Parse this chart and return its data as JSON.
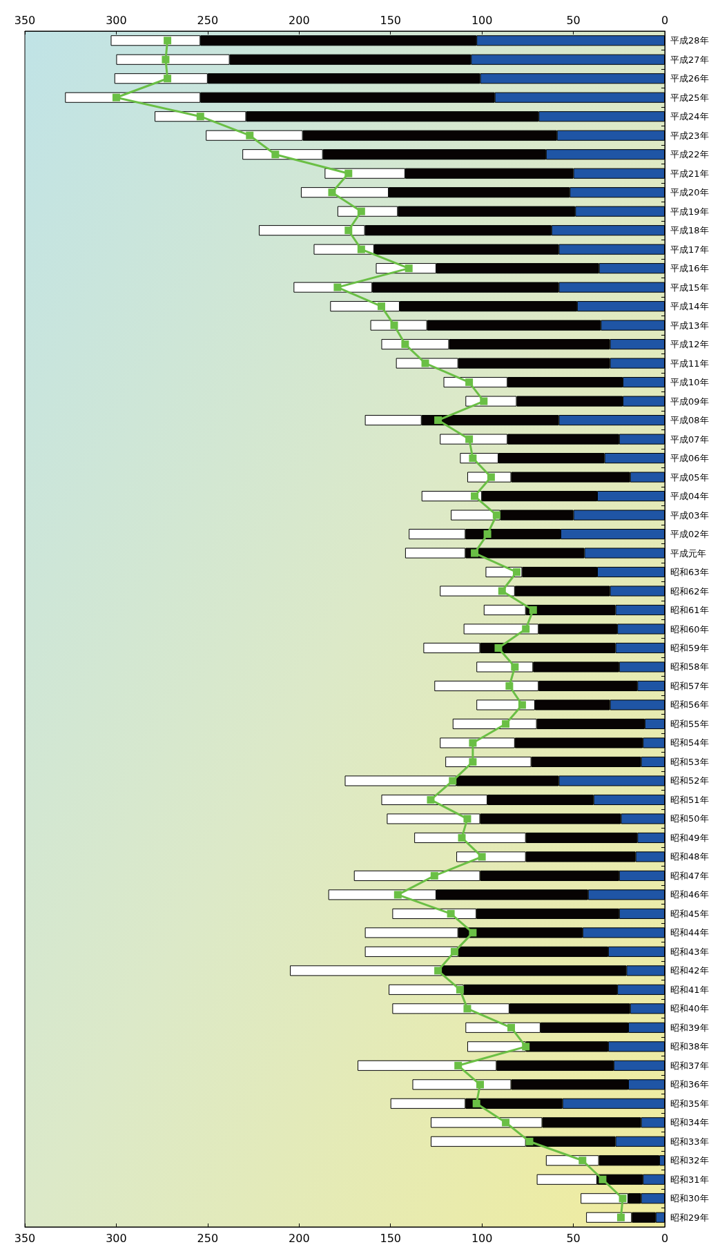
{
  "chart_data": {
    "type": "bar",
    "orientation": "horizontal",
    "stacked": true,
    "categories": [
      "平成28年",
      "平成27年",
      "平成26年",
      "平成25年",
      "平成24年",
      "平成23年",
      "平成22年",
      "平成21年",
      "平成20年",
      "平成19年",
      "平成18年",
      "平成17年",
      "平成16年",
      "平成15年",
      "平成14年",
      "平成13年",
      "平成12年",
      "平成11年",
      "平成10年",
      "平成09年",
      "平成08年",
      "平成07年",
      "平成06年",
      "平成05年",
      "平成04年",
      "平成03年",
      "平成02年",
      "平成元年",
      "昭和63年",
      "昭和62年",
      "昭和61年",
      "昭和60年",
      "昭和59年",
      "昭和58年",
      "昭和57年",
      "昭和56年",
      "昭和55年",
      "昭和54年",
      "昭和53年",
      "昭和52年",
      "昭和51年",
      "昭和50年",
      "昭和49年",
      "昭和48年",
      "昭和47年",
      "昭和46年",
      "昭和45年",
      "昭和44年",
      "昭和43年",
      "昭和42年",
      "昭和41年",
      "昭和40年",
      "昭和39年",
      "昭和38年",
      "昭和37年",
      "昭和36年",
      "昭和35年",
      "昭和34年",
      "昭和33年",
      "昭和32年",
      "昭和31年",
      "昭和30年",
      "昭和29年"
    ],
    "series": [
      {
        "color": "#1f55a5",
        "values": [
          103,
          106,
          101,
          93,
          69,
          59,
          65,
          50,
          52,
          49,
          62,
          58,
          36,
          58,
          48,
          35,
          30,
          30,
          23,
          23,
          58,
          25,
          33,
          19,
          37,
          50,
          57,
          44,
          37,
          30,
          27,
          26,
          27,
          25,
          15,
          30,
          11,
          12,
          13,
          58,
          39,
          24,
          15,
          16,
          25,
          42,
          25,
          45,
          31,
          21,
          26,
          19,
          20,
          31,
          28,
          20,
          56,
          13,
          27,
          3,
          12,
          13,
          5
        ]
      },
      {
        "color": "#070303",
        "values": [
          151,
          132,
          149,
          161,
          160,
          139,
          122,
          92,
          99,
          97,
          102,
          101,
          89,
          102,
          97,
          95,
          88,
          83,
          63,
          58,
          75,
          61,
          58,
          65,
          63,
          40,
          52,
          65,
          41,
          52,
          49,
          43,
          74,
          47,
          54,
          41,
          59,
          70,
          60,
          56,
          58,
          77,
          61,
          60,
          76,
          83,
          78,
          68,
          82,
          101,
          84,
          66,
          48,
          45,
          64,
          64,
          53,
          54,
          49,
          33,
          25,
          7,
          13
        ]
      },
      {
        "color": "#ffffff",
        "values": [
          49,
          62,
          51,
          74,
          50,
          53,
          44,
          44,
          48,
          33,
          58,
          33,
          33,
          43,
          38,
          31,
          37,
          34,
          35,
          28,
          31,
          37,
          21,
          24,
          33,
          27,
          31,
          33,
          20,
          41,
          23,
          41,
          31,
          31,
          57,
          32,
          46,
          41,
          47,
          61,
          58,
          51,
          61,
          38,
          69,
          59,
          46,
          51,
          51,
          83,
          41,
          64,
          41,
          32,
          76,
          54,
          41,
          61,
          52,
          29,
          33,
          26,
          25
        ]
      },
      {
        "type": "line",
        "color": "#6abf45",
        "marker": "square",
        "values": [
          272,
          273,
          272,
          300,
          254,
          227,
          213,
          173,
          182,
          166,
          173,
          166,
          140,
          179,
          155,
          148,
          142,
          131,
          107,
          99,
          124,
          107,
          105,
          95,
          104,
          92,
          97,
          104,
          81,
          89,
          72,
          76,
          91,
          82,
          85,
          78,
          87,
          105,
          105,
          116,
          128,
          108,
          111,
          100,
          126,
          146,
          117,
          105,
          115,
          124,
          112,
          108,
          84,
          76,
          113,
          101,
          103,
          87,
          74,
          45,
          34,
          23,
          24
        ]
      }
    ],
    "xlim": [
      350,
      0
    ],
    "xticks": [
      0,
      50,
      100,
      150,
      200,
      250,
      300,
      350
    ],
    "x2lim": [
      350,
      0
    ],
    "x2ticks": [
      0,
      50,
      100,
      150,
      200,
      250,
      300,
      350
    ]
  }
}
